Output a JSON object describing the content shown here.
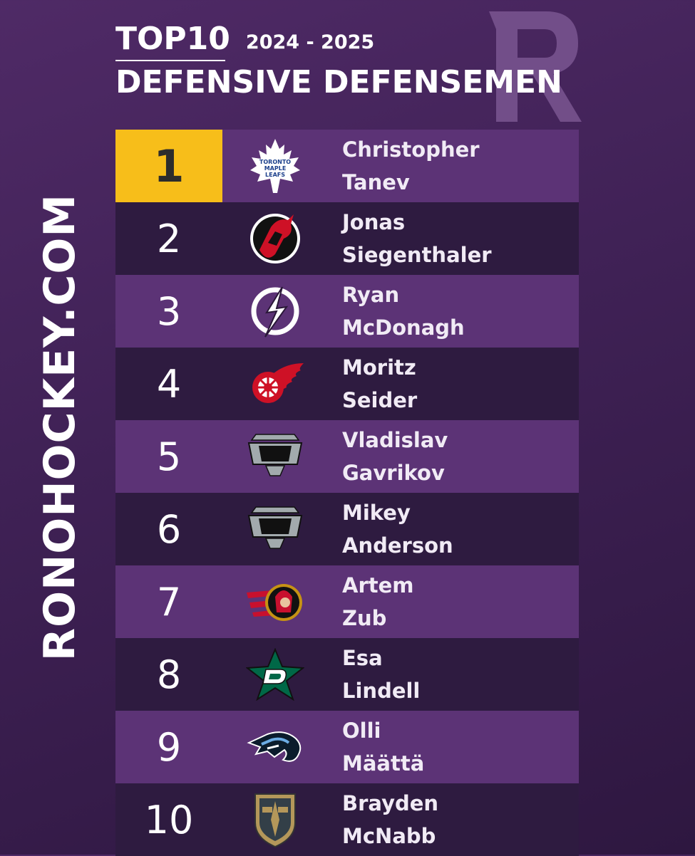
{
  "side_text": "RONOHOCKEY.COM",
  "watermark_icon": "r-logo-icon",
  "header": {
    "top10": "TOP10",
    "season": "2024 - 2025",
    "title": "DEFENSIVE DEFENSEMEN"
  },
  "colors": {
    "accent_gold": "#f7be1a",
    "row_light": "#5c3376",
    "row_dark": "#2e1b40"
  },
  "rankings": [
    {
      "rank": "1",
      "first": "Christopher",
      "last": "Tanev",
      "team_icon": "maple-leafs-logo-icon"
    },
    {
      "rank": "2",
      "first": "Jonas",
      "last": "Siegenthaler",
      "team_icon": "devils-logo-icon"
    },
    {
      "rank": "3",
      "first": "Ryan",
      "last": "McDonagh",
      "team_icon": "lightning-logo-icon"
    },
    {
      "rank": "4",
      "first": "Moritz",
      "last": "Seider",
      "team_icon": "red-wings-logo-icon"
    },
    {
      "rank": "5",
      "first": "Vladislav",
      "last": "Gavrikov",
      "team_icon": "kings-logo-icon"
    },
    {
      "rank": "6",
      "first": "Mikey",
      "last": "Anderson",
      "team_icon": "kings-logo-icon"
    },
    {
      "rank": "7",
      "first": "Artem",
      "last": "Zub",
      "team_icon": "senators-logo-icon"
    },
    {
      "rank": "8",
      "first": "Esa",
      "last": "Lindell",
      "team_icon": "stars-logo-icon"
    },
    {
      "rank": "9",
      "first": "Olli",
      "last": "Määttä",
      "team_icon": "utah-logo-icon"
    },
    {
      "rank": "10",
      "first": "Brayden",
      "last": "McNabb",
      "team_icon": "golden-knights-logo-icon"
    }
  ]
}
